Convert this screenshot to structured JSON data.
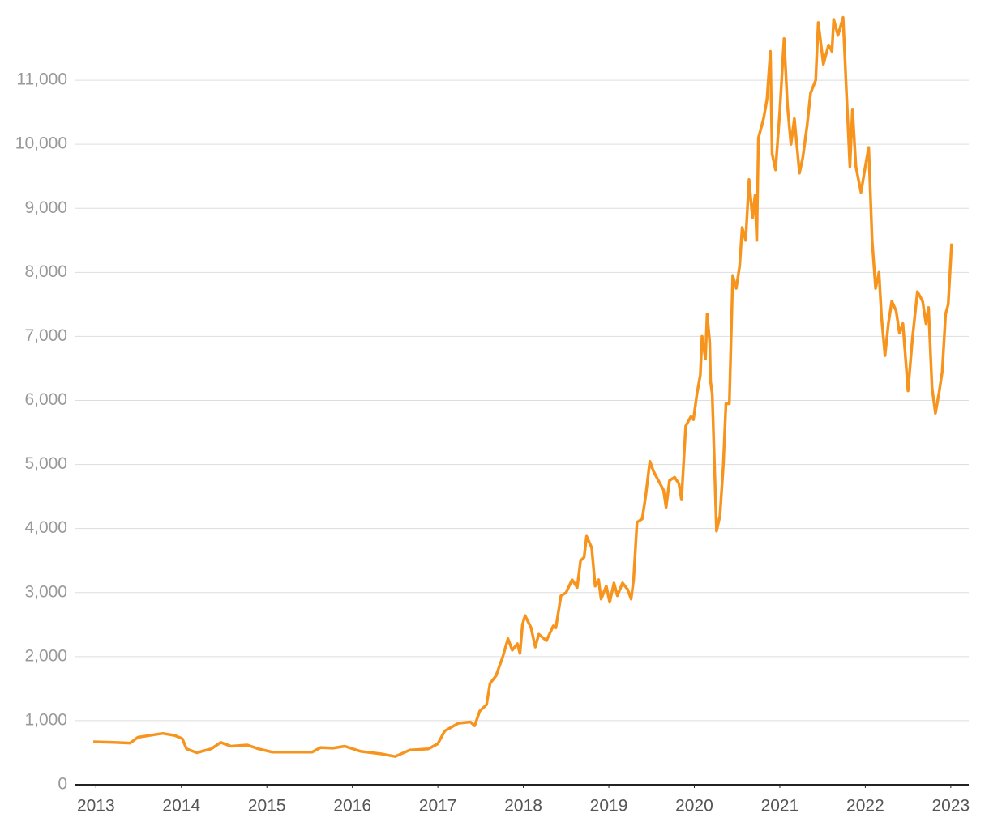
{
  "chart_data": {
    "type": "line",
    "x": [
      2012.97,
      2013.21,
      2013.4,
      2013.49,
      2013.68,
      2013.78,
      2013.92,
      2014.01,
      2014.06,
      2014.18,
      2014.35,
      2014.46,
      2014.58,
      2014.77,
      2014.9,
      2015.06,
      2015.29,
      2015.53,
      2015.63,
      2015.77,
      2015.91,
      2016.1,
      2016.34,
      2016.5,
      2016.67,
      2016.89,
      2017.0,
      2017.08,
      2017.24,
      2017.38,
      2017.43,
      2017.49,
      2017.57,
      2017.61,
      2017.68,
      2017.76,
      2017.82,
      2017.87,
      2017.93,
      2017.96,
      2017.99,
      2018.02,
      2018.09,
      2018.14,
      2018.18,
      2018.27,
      2018.35,
      2018.38,
      2018.44,
      2018.5,
      2018.57,
      2018.63,
      2018.67,
      2018.71,
      2018.74,
      2018.8,
      2018.84,
      2018.88,
      2018.91,
      2018.97,
      2019.01,
      2019.06,
      2019.1,
      2019.16,
      2019.22,
      2019.26,
      2019.29,
      2019.33,
      2019.39,
      2019.43,
      2019.48,
      2019.52,
      2019.58,
      2019.64,
      2019.67,
      2019.71,
      2019.77,
      2019.82,
      2019.85,
      2019.9,
      2019.96,
      2019.99,
      2020.03,
      2020.07,
      2020.09,
      2020.13,
      2020.15,
      2020.18,
      2020.19,
      2020.21,
      2020.26,
      2020.3,
      2020.34,
      2020.37,
      2020.41,
      2020.45,
      2020.49,
      2020.53,
      2020.56,
      2020.6,
      2020.64,
      2020.68,
      2020.71,
      2020.73,
      2020.75,
      2020.81,
      2020.85,
      2020.89,
      2020.91,
      2020.95,
      2021.0,
      2021.05,
      2021.09,
      2021.13,
      2021.17,
      2021.23,
      2021.27,
      2021.32,
      2021.36,
      2021.42,
      2021.45,
      2021.51,
      2021.57,
      2021.61,
      2021.63,
      2021.68,
      2021.74,
      2021.78,
      2021.82,
      2021.85,
      2021.89,
      2021.95,
      2022.0,
      2022.04,
      2022.08,
      2022.12,
      2022.16,
      2022.19,
      2022.23,
      2022.27,
      2022.31,
      2022.36,
      2022.4,
      2022.44,
      2022.5,
      2022.55,
      2022.61,
      2022.67,
      2022.71,
      2022.74,
      2022.78,
      2022.82,
      2022.86,
      2022.9,
      2022.94,
      2022.97,
      2023.01
    ],
    "series": [
      {
        "color": "#f7941d",
        "values": [
          670,
          660,
          650,
          740,
          780,
          800,
          770,
          720,
          560,
          500,
          560,
          660,
          600,
          620,
          560,
          510,
          510,
          510,
          580,
          570,
          600,
          520,
          480,
          440,
          540,
          560,
          640,
          840,
          960,
          980,
          920,
          1150,
          1250,
          1580,
          1700,
          2000,
          2280,
          2100,
          2200,
          2050,
          2500,
          2640,
          2450,
          2150,
          2350,
          2250,
          2480,
          2450,
          2950,
          3000,
          3200,
          3080,
          3500,
          3550,
          3880,
          3700,
          3100,
          3200,
          2900,
          3100,
          2850,
          3150,
          2950,
          3150,
          3050,
          2900,
          3200,
          4100,
          4150,
          4500,
          5050,
          4900,
          4750,
          4600,
          4330,
          4750,
          4800,
          4700,
          4450,
          5600,
          5750,
          5700,
          6100,
          6400,
          7000,
          6650,
          7350,
          6900,
          6300,
          6100,
          3960,
          4200,
          5000,
          5950,
          5950,
          7950,
          7750,
          8100,
          8700,
          8500,
          9450,
          8850,
          9200,
          8500,
          10100,
          10400,
          10700,
          11450,
          9850,
          9600,
          10500,
          11650,
          10600,
          10000,
          10400,
          9550,
          9800,
          10300,
          10800,
          11000,
          11900,
          11250,
          11550,
          11450,
          11950,
          11700,
          11980,
          10800,
          9650,
          10550,
          9650,
          9250,
          9650,
          9950,
          8500,
          7750,
          8000,
          7300,
          6700,
          7200,
          7550,
          7400,
          7050,
          7200,
          6150,
          6950,
          7700,
          7550,
          7200,
          7450,
          6200,
          5800,
          6100,
          6450,
          7350,
          7500,
          8450
        ]
      }
    ],
    "xlim": [
      2012.76,
      2023.21
    ],
    "xticks": [
      2013,
      2014,
      2015,
      2016,
      2017,
      2018,
      2019,
      2020,
      2021,
      2022,
      2023
    ],
    "ylim": [
      0,
      12000
    ],
    "yticks": [
      0,
      {
        "value": 1000,
        "label": "1,000"
      },
      {
        "value": 2000,
        "label": "2,000"
      },
      {
        "value": 3000,
        "label": "3,000"
      },
      {
        "value": 4000,
        "label": "4,000"
      },
      {
        "value": 5000,
        "label": "5,000"
      },
      {
        "value": 6000,
        "label": "6,000"
      },
      {
        "value": 7000,
        "label": "7,000"
      },
      {
        "value": 8000,
        "label": "8,000"
      },
      {
        "value": 9000,
        "label": "9,000"
      },
      {
        "value": 10000,
        "label": "10,000"
      },
      {
        "value": 11000,
        "label": "11,000"
      }
    ],
    "grid": true
  }
}
